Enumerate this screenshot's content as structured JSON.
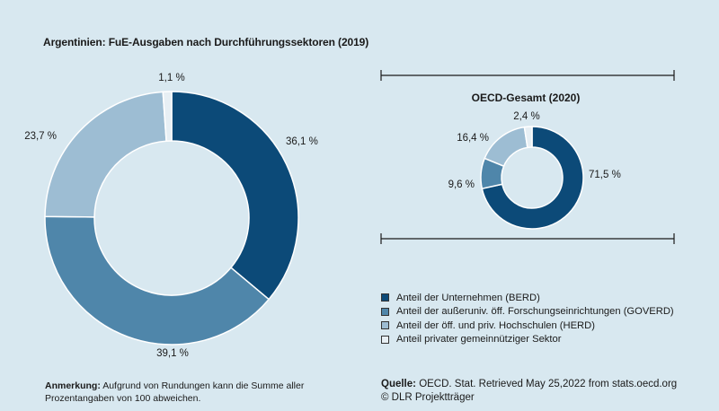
{
  "chart_data": [
    {
      "type": "pie",
      "title": "Argentinien: FuE-Ausgaben nach Durchführungssektoren (2019)",
      "categories": [
        "BERD",
        "GOVERD",
        "HERD",
        "Privater gemeinnütziger Sektor"
      ],
      "values": [
        36.1,
        39.1,
        23.7,
        1.1
      ],
      "labels": [
        "36,1 %",
        "39,1 %",
        "23,7 %",
        "1,1 %"
      ]
    },
    {
      "type": "pie",
      "title": "OECD-Gesamt (2020)",
      "categories": [
        "BERD",
        "GOVERD",
        "HERD",
        "Privater gemeinnütziger Sektor"
      ],
      "values": [
        71.5,
        9.6,
        16.4,
        2.4
      ],
      "labels": [
        "71,5 %",
        "9,6 %",
        "16,4 %",
        "2,4 %"
      ]
    }
  ],
  "colors": [
    "#0c4a78",
    "#4f86aa",
    "#9dbdd3",
    "#e7eff4"
  ],
  "legend": [
    {
      "label": "Anteil der Unternehmen (BERD)",
      "color": "#0c4a78"
    },
    {
      "label": "Anteil der außeruniv. öff. Forschungseinrichtungen (GOVERD)",
      "color": "#4f86aa"
    },
    {
      "label": "Anteil der öff. und priv. Hochschulen (HERD)",
      "color": "#9dbdd3"
    },
    {
      "label": "Anteil privater gemeinnütziger Sektor",
      "color": "#e7eff4"
    }
  ],
  "note": {
    "label": "Anmerkung:",
    "text": "Aufgrund von Rundungen kann die Summe aller Prozentangaben von 100 abweichen."
  },
  "source": {
    "label": "Quelle:",
    "text": "OECD. Stat. Retrieved May 25,2022 from stats.oecd.org",
    "copyright": "© DLR Projektträger"
  }
}
